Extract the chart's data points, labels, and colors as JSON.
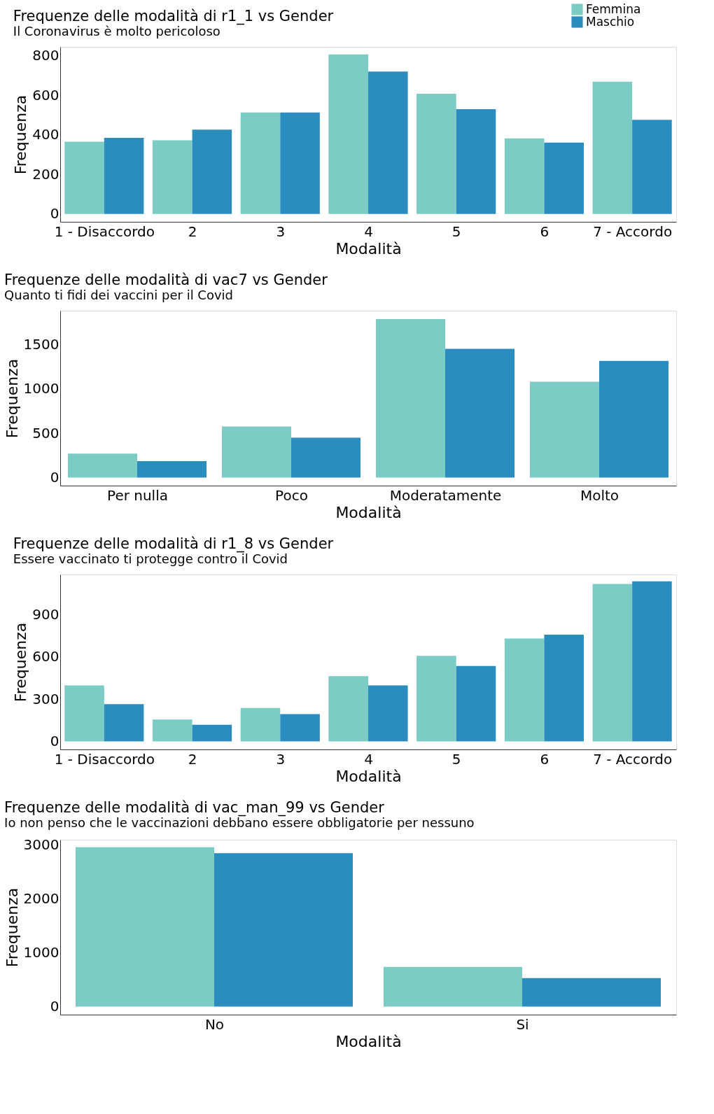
{
  "chart_data": [
    {
      "type": "bar",
      "title": "Frequenze delle modalità di r1_1 vs Gender",
      "subtitle": "Il Coronavirus è molto pericoloso",
      "xlabel": "Modalità",
      "ylabel": "Frequenza",
      "legend": "top right",
      "grid": false,
      "categories": [
        "1 - Disaccordo",
        "2",
        "3",
        "4",
        "5",
        "6",
        "7 - Accordo"
      ],
      "series": [
        {
          "name": "Femmina",
          "color": "#7bccc4",
          "values": [
            365,
            372,
            513,
            807,
            608,
            382,
            669
          ]
        },
        {
          "name": "Maschio",
          "color": "#2b8cbe",
          "values": [
            385,
            426,
            513,
            720,
            530,
            361,
            476
          ]
        }
      ],
      "ylim": [
        -40,
        845
      ],
      "yticks": [
        0,
        200,
        400,
        600,
        800
      ]
    },
    {
      "type": "bar",
      "title": "Frequenze delle modalità di vac7 vs Gender",
      "subtitle": "Quanto ti fidi dei vaccini per il Covid",
      "xlabel": "Modalità",
      "ylabel": "Frequenza",
      "legend": "top right",
      "grid": false,
      "categories": [
        "Per nulla",
        "Poco",
        "Moderatamente",
        "Molto"
      ],
      "series": [
        {
          "name": "Femmina",
          "color": "#7bccc4",
          "values": [
            270,
            575,
            1785,
            1080
          ]
        },
        {
          "name": "Maschio",
          "color": "#2b8cbe",
          "values": [
            185,
            450,
            1450,
            1315
          ]
        }
      ],
      "ylim": [
        -90,
        1880
      ],
      "yticks": [
        0,
        500,
        1000,
        1500
      ]
    },
    {
      "type": "bar",
      "title": "Frequenze delle modalità di r1_8  vs Gender",
      "subtitle": "Essere vaccinato ti protegge contro il Covid",
      "xlabel": "Modalità",
      "ylabel": "Frequenza",
      "legend": "top right",
      "grid": false,
      "categories": [
        "1 - Disaccordo",
        "2",
        "3",
        "4",
        "5",
        "6",
        "7 - Accordo"
      ],
      "series": [
        {
          "name": "Femmina",
          "color": "#7bccc4",
          "values": [
            398,
            156,
            237,
            464,
            607,
            730,
            1118
          ]
        },
        {
          "name": "Maschio",
          "color": "#2b8cbe",
          "values": [
            265,
            118,
            194,
            398,
            536,
            758,
            1137
          ]
        }
      ],
      "ylim": [
        -57,
        1185
      ],
      "yticks": [
        0,
        300,
        600,
        900
      ]
    },
    {
      "type": "bar",
      "title": "Frequenze delle modalità di vac_man_99 vs Gender",
      "subtitle": "Io non penso che le vaccinazioni debbano essere obbligatorie per nessuno",
      "xlabel": "Modalità",
      "ylabel": "Frequenza",
      "legend": "top right",
      "grid": false,
      "categories": [
        "No",
        "Si"
      ],
      "series": [
        {
          "name": "Femmina",
          "color": "#7bccc4",
          "values": [
            2960,
            740
          ]
        },
        {
          "name": "Maschio",
          "color": "#2b8cbe",
          "values": [
            2850,
            530
          ]
        }
      ],
      "ylim": [
        -148,
        3100
      ],
      "yticks": [
        0,
        1000,
        2000,
        3000
      ]
    }
  ]
}
